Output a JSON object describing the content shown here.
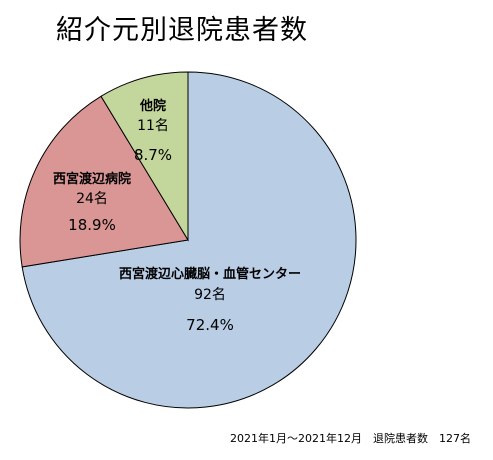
{
  "chart_data": {
    "type": "pie",
    "title": "紹介元別退院患者数",
    "slices": [
      {
        "label": "西宮渡辺心臓脳・血管センター",
        "count_label": "92名",
        "percent_label": "72.4%",
        "value": 92,
        "color": "#b9cde5"
      },
      {
        "label": "西宮渡辺病院",
        "count_label": "24名",
        "percent_label": "18.9%",
        "value": 24,
        "color": "#d99694"
      },
      {
        "label": "他院",
        "count_label": "11名",
        "percent_label": "8.7%",
        "value": 11,
        "color": "#c3d69b"
      }
    ],
    "footnote": "2021年1月～2021年12月　退院患者数　127名"
  }
}
